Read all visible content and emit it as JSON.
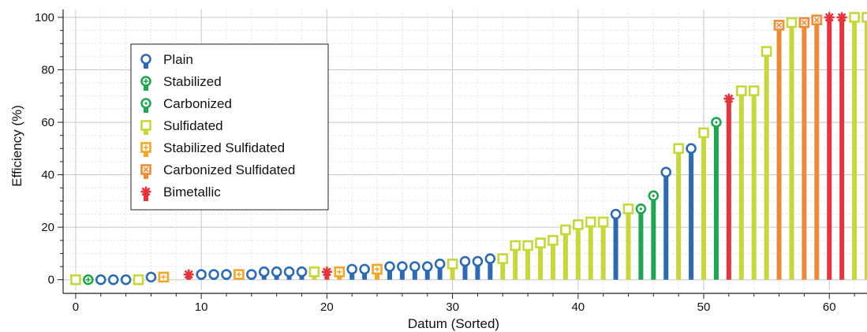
{
  "chart_data": {
    "type": "bar",
    "style": "lollipop",
    "xlabel": "Datum (Sorted)",
    "ylabel": "Efficiency (%)",
    "xlim": [
      -1,
      63
    ],
    "ylim": [
      -4,
      103
    ],
    "xticks": [
      0,
      10,
      20,
      30,
      40,
      50,
      60
    ],
    "yticks": [
      0,
      20,
      40,
      60,
      80,
      100
    ],
    "grid": true,
    "legend_position": "upper-left",
    "series": [
      {
        "name": "Plain",
        "color": "#2b6bb5",
        "marker": "circle",
        "x": [
          2,
          3,
          4,
          6,
          10,
          11,
          12,
          14,
          15,
          16,
          17,
          18,
          22,
          23,
          25,
          26,
          27,
          28,
          29,
          31,
          32,
          33,
          43,
          47,
          49
        ],
        "y": [
          0,
          0,
          0,
          1,
          2,
          2,
          2,
          2,
          3,
          3,
          3,
          3,
          4,
          4,
          5,
          5,
          5,
          5,
          6,
          7,
          7,
          8,
          25,
          41,
          50
        ]
      },
      {
        "name": "Stabilized",
        "color": "#1ea84e",
        "marker": "circle-plus",
        "x": [
          1
        ],
        "y": [
          0
        ]
      },
      {
        "name": "Carbonized",
        "color": "#1ea84e",
        "marker": "circle-dot",
        "x": [
          45,
          46,
          51
        ],
        "y": [
          27,
          32,
          60
        ]
      },
      {
        "name": "Sulfidated",
        "color": "#c5d838",
        "marker": "square",
        "x": [
          0,
          5,
          19,
          30,
          34,
          35,
          36,
          37,
          38,
          39,
          40,
          41,
          42,
          44,
          48,
          50,
          53,
          54,
          55,
          57,
          62,
          63
        ],
        "y": [
          0,
          0,
          3,
          6,
          8,
          13,
          13,
          14,
          15,
          19,
          21,
          22,
          22,
          27,
          50,
          56,
          72,
          72,
          87,
          98,
          100,
          100
        ]
      },
      {
        "name": "Stabilized Sulfidated",
        "color": "#f5a623",
        "marker": "square-plus",
        "x": [
          7,
          13,
          21,
          24
        ],
        "y": [
          1,
          2,
          3,
          4
        ]
      },
      {
        "name": "Carbonized Sulfidated",
        "color": "#f08a35",
        "marker": "square-x",
        "x": [
          56,
          58,
          59
        ],
        "y": [
          97,
          98,
          99
        ]
      },
      {
        "name": "Bimetallic",
        "color": "#e8333a",
        "marker": "asterisk",
        "x": [
          9,
          20,
          52,
          60,
          61
        ],
        "y": [
          2,
          3,
          69,
          100,
          100
        ]
      }
    ]
  }
}
